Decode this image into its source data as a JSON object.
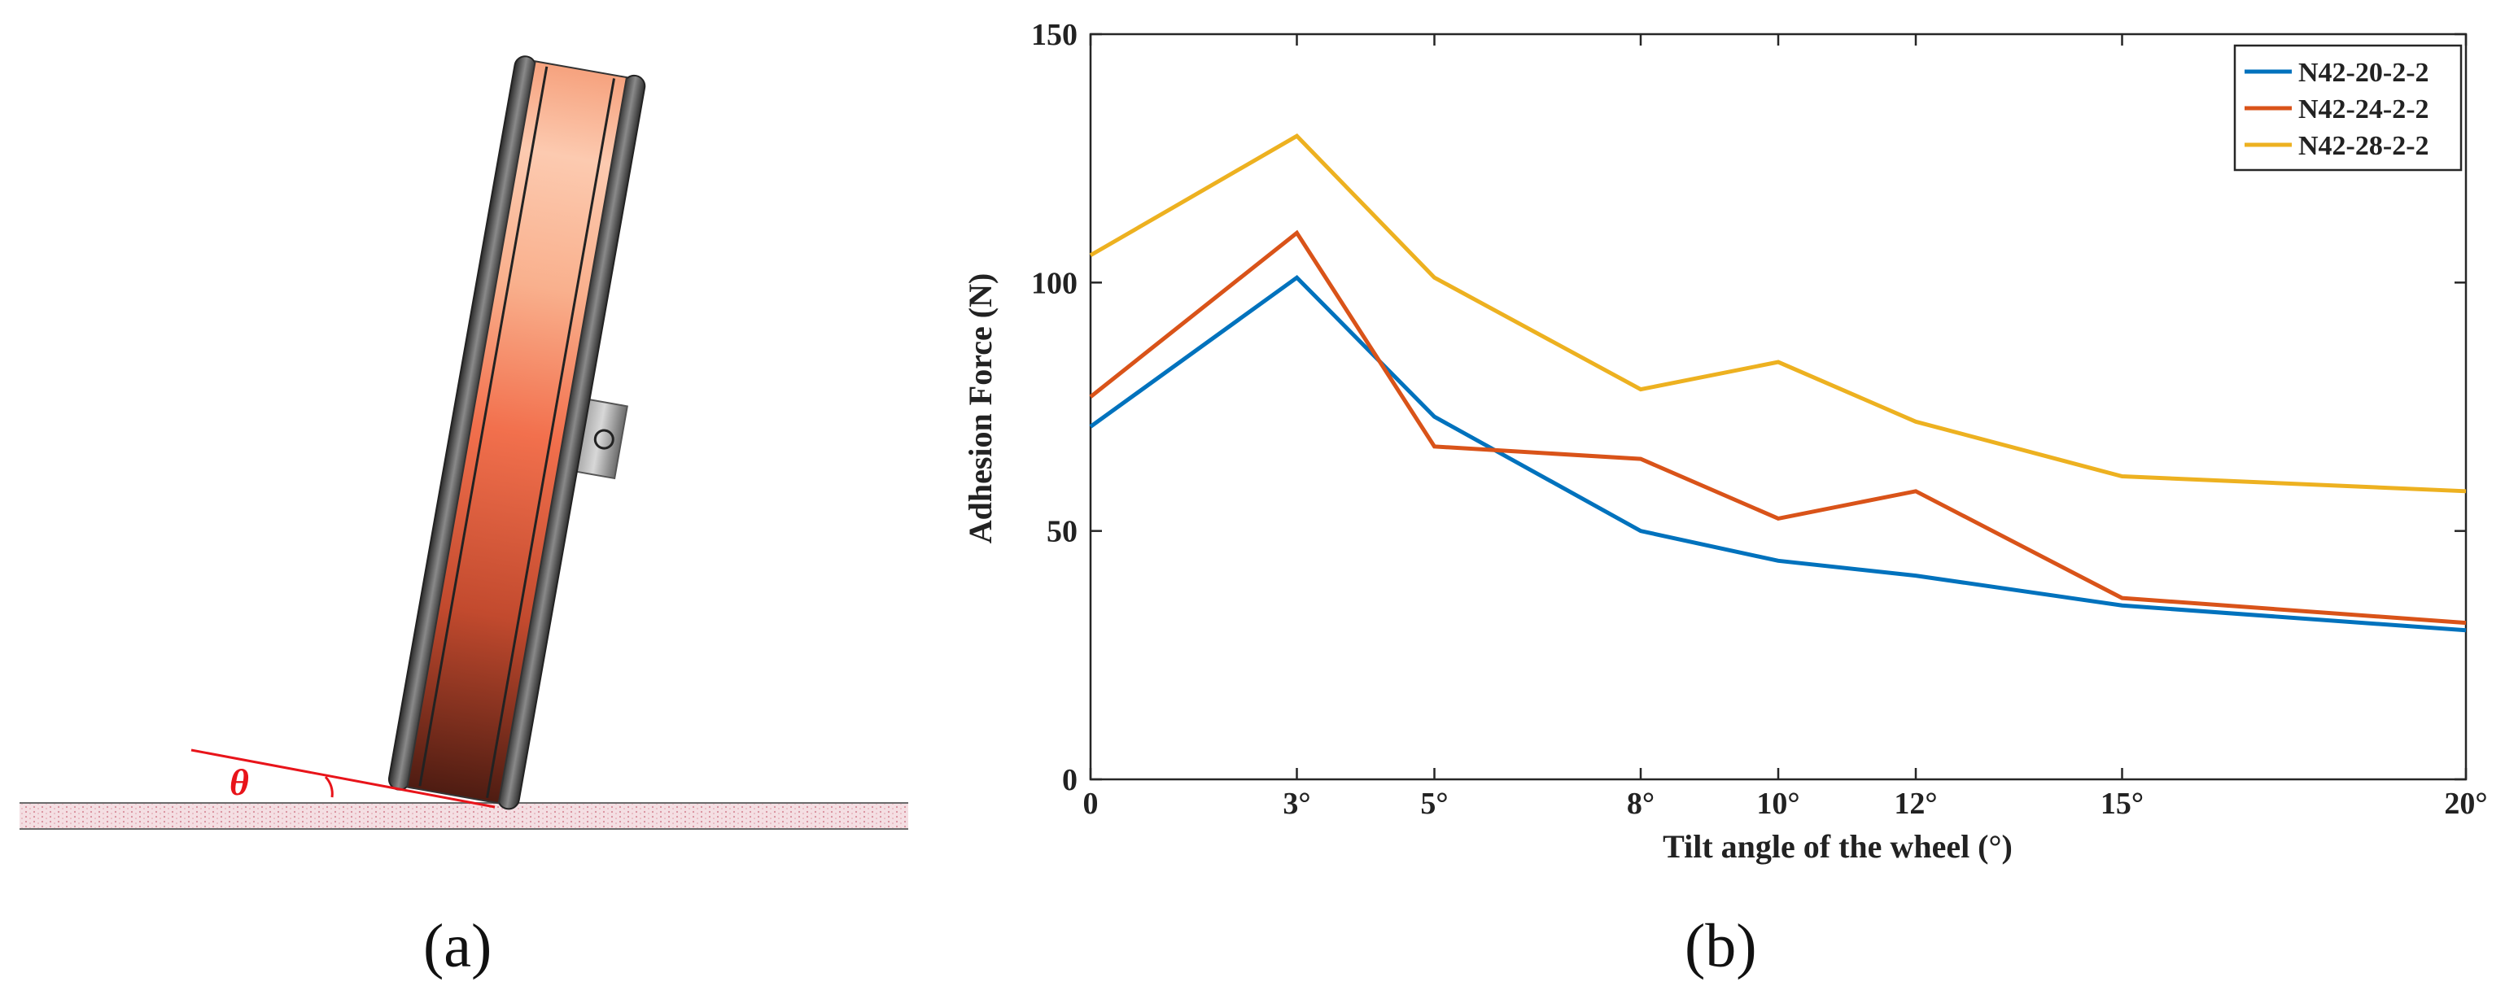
{
  "panel_a": {
    "label": "(a)",
    "angle_symbol": "θ",
    "colors": {
      "angle": "#e8141a",
      "ground": "#e9b7bf",
      "rim": "#5b5b5b"
    }
  },
  "panel_b": {
    "label": "(b)"
  },
  "chart_data": {
    "type": "line",
    "title": "",
    "xlabel": "Tilt angle of the wheel (°)",
    "ylabel": "Adhesion Force (N)",
    "x": [
      0,
      3,
      5,
      8,
      10,
      12,
      15,
      20
    ],
    "xtick_labels": [
      "0",
      "3°",
      "5°",
      "8°",
      "10°",
      "12°",
      "15°",
      "20°"
    ],
    "yticks": [
      0,
      50,
      100,
      150
    ],
    "ytick_labels": [
      "0",
      "50",
      "100",
      "150"
    ],
    "xlim": [
      0,
      20
    ],
    "ylim": [
      0,
      150
    ],
    "grid": false,
    "legend_position": "top-right",
    "series": [
      {
        "name": "N42-20-2-2",
        "color": "#0072bd",
        "values": [
          71,
          101,
          73,
          50,
          44,
          41,
          35,
          30
        ]
      },
      {
        "name": "N42-24-2-2",
        "color": "#d95319",
        "values": [
          77,
          110,
          67,
          64.5,
          52.5,
          58,
          36.5,
          31.5
        ]
      },
      {
        "name": "N42-28-2-2",
        "color": "#edb120",
        "values": [
          105.5,
          129.5,
          101,
          78.5,
          84,
          72,
          61,
          58
        ]
      }
    ]
  }
}
